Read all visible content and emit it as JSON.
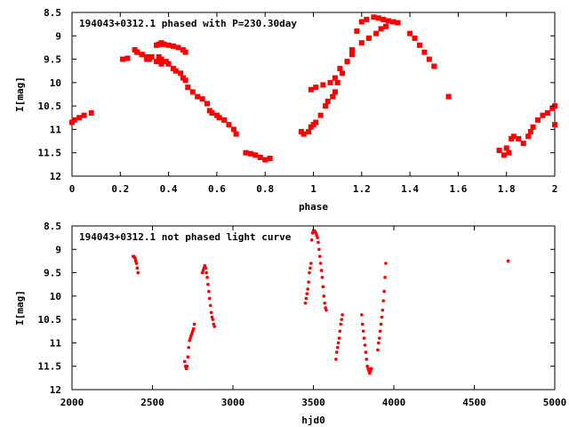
{
  "colors": {
    "marker": "#ff0000",
    "axis": "#000000",
    "background": "#ffffff"
  },
  "chart_data": [
    {
      "type": "scatter",
      "title": "194043+0312.1 phased with P=230.30day",
      "xlabel": "phase",
      "ylabel": "I[mag]",
      "xlim": [
        0,
        2
      ],
      "ylim": [
        8.5,
        12
      ],
      "y_inverted": true,
      "x_ticks": [
        "0",
        "0.2",
        "0.4",
        "0.6",
        "0.8",
        "1",
        "1.2",
        "1.4",
        "1.6",
        "1.8",
        "2"
      ],
      "y_ticks": [
        "8.5",
        "9",
        "9.5",
        "10",
        "10.5",
        "11",
        "11.5",
        "12"
      ],
      "grid": false,
      "legend": "none",
      "marker": "filled-square",
      "series": [
        {
          "x": [
            0.0,
            0.01,
            0.03,
            0.05,
            0.08,
            0.21,
            0.23,
            0.27,
            0.29,
            0.31,
            0.33,
            0.35,
            0.36,
            0.37,
            0.38,
            0.4,
            0.42,
            0.44,
            0.46,
            0.47,
            0.36,
            0.37,
            0.39,
            0.4,
            0.42,
            0.43,
            0.45,
            0.46,
            0.47,
            0.48,
            0.5,
            0.52,
            0.54,
            0.56,
            0.57,
            0.58,
            0.6,
            0.61,
            0.63,
            0.65,
            0.67,
            0.68,
            0.72,
            0.74,
            0.76,
            0.78,
            0.8,
            0.82,
            0.95,
            0.96,
            0.98,
            0.99,
            1.0,
            1.01,
            1.03,
            1.05,
            1.06,
            1.08,
            1.09,
            1.1,
            1.12,
            1.14,
            1.16,
            1.18,
            1.2,
            1.22,
            1.25,
            1.27,
            1.29,
            1.31,
            1.33,
            1.35,
            1.4,
            1.42,
            1.44,
            1.46,
            1.48,
            1.5,
            1.56,
            1.77,
            1.79,
            1.8,
            1.81,
            1.82,
            1.83,
            1.85,
            1.87,
            1.89,
            1.9,
            1.91,
            1.93,
            1.95,
            1.97,
            1.99,
            2.0,
            2.0,
            0.99,
            1.01,
            1.04,
            1.07,
            1.09,
            1.11,
            1.14,
            1.16,
            1.2,
            1.23,
            1.26,
            1.28,
            1.3,
            0.26,
            0.27,
            0.29,
            0.31,
            0.32,
            0.35,
            0.37
          ],
          "y": [
            10.85,
            10.8,
            10.75,
            10.7,
            10.65,
            9.5,
            9.48,
            9.35,
            9.4,
            9.5,
            9.45,
            9.2,
            9.18,
            9.15,
            9.18,
            9.2,
            9.22,
            9.25,
            9.3,
            9.35,
            9.45,
            9.5,
            9.55,
            9.6,
            9.7,
            9.75,
            9.8,
            9.9,
            9.95,
            10.1,
            10.2,
            10.3,
            10.35,
            10.45,
            10.6,
            10.65,
            10.7,
            10.75,
            10.8,
            10.9,
            11.0,
            11.1,
            11.5,
            11.52,
            11.55,
            11.6,
            11.65,
            11.62,
            11.05,
            11.1,
            11.05,
            10.95,
            10.9,
            10.85,
            10.7,
            10.5,
            10.4,
            10.3,
            10.2,
            10.0,
            9.8,
            9.55,
            9.3,
            8.9,
            8.7,
            8.65,
            8.6,
            8.62,
            8.65,
            8.68,
            8.7,
            8.72,
            8.95,
            9.05,
            9.2,
            9.35,
            9.5,
            9.65,
            10.3,
            11.45,
            11.55,
            11.4,
            11.5,
            11.2,
            11.15,
            11.2,
            11.3,
            11.15,
            11.05,
            10.95,
            10.8,
            10.7,
            10.65,
            10.55,
            10.5,
            10.9,
            10.15,
            10.1,
            10.05,
            10.0,
            9.9,
            9.7,
            9.55,
            9.4,
            9.15,
            9.05,
            8.95,
            8.85,
            8.8,
            9.3,
            9.35,
            9.4,
            9.45,
            9.5,
            9.55,
            9.6
          ]
        }
      ]
    },
    {
      "type": "scatter",
      "title": "194043+0312.1 not phased light curve",
      "xlabel": "hjd0",
      "ylabel": "I[mag]",
      "xlim": [
        2000,
        5000
      ],
      "ylim": [
        8.5,
        12
      ],
      "y_inverted": true,
      "x_ticks": [
        "2000",
        "2500",
        "3000",
        "3500",
        "4000",
        "4500",
        "5000"
      ],
      "y_ticks": [
        "8.5",
        "9",
        "9.5",
        "10",
        "10.5",
        "11",
        "11.5",
        "12"
      ],
      "grid": false,
      "legend": "none",
      "marker": "small-dot",
      "series": [
        {
          "x": [
            2380,
            2385,
            2390,
            2393,
            2396,
            2400,
            2405,
            2410,
            2700,
            2705,
            2710,
            2715,
            2720,
            2725,
            2730,
            2735,
            2740,
            2745,
            2750,
            2755,
            2760,
            2810,
            2815,
            2820,
            2825,
            2830,
            2835,
            2840,
            2845,
            2850,
            2855,
            2860,
            2865,
            2870,
            2875,
            2880,
            2885,
            3450,
            3455,
            3460,
            3465,
            3470,
            3475,
            3480,
            3485,
            3490,
            3495,
            3500,
            3505,
            3510,
            3515,
            3520,
            3525,
            3530,
            3535,
            3540,
            3545,
            3550,
            3555,
            3560,
            3565,
            3570,
            3575,
            3580,
            3640,
            3645,
            3650,
            3655,
            3660,
            3665,
            3670,
            3675,
            3680,
            3800,
            3805,
            3810,
            3815,
            3820,
            3825,
            3830,
            3835,
            3840,
            3845,
            3850,
            3855,
            3860,
            3900,
            3905,
            3910,
            3915,
            3920,
            3925,
            3930,
            3935,
            3940,
            3945,
            3950,
            4710
          ],
          "y": [
            9.15,
            9.15,
            9.18,
            9.2,
            9.25,
            9.3,
            9.4,
            9.5,
            11.4,
            11.5,
            11.55,
            11.5,
            11.3,
            11.1,
            10.95,
            10.9,
            10.85,
            10.8,
            10.75,
            10.7,
            10.6,
            9.5,
            9.45,
            9.4,
            9.35,
            9.4,
            9.5,
            9.6,
            9.75,
            9.9,
            10.05,
            10.2,
            10.35,
            10.45,
            10.5,
            10.6,
            10.65,
            10.15,
            10.05,
            9.95,
            9.85,
            9.7,
            9.5,
            9.4,
            9.3,
            8.8,
            8.65,
            8.6,
            8.6,
            8.62,
            8.65,
            8.7,
            8.75,
            8.85,
            9.0,
            9.15,
            9.3,
            9.45,
            9.6,
            9.8,
            10.0,
            10.15,
            10.25,
            10.3,
            11.35,
            11.2,
            11.1,
            11.0,
            10.9,
            10.75,
            10.6,
            10.5,
            10.4,
            10.4,
            10.6,
            10.75,
            10.9,
            11.05,
            11.2,
            11.35,
            11.5,
            11.55,
            11.6,
            11.65,
            11.6,
            11.55,
            11.15,
            11.0,
            10.9,
            10.75,
            10.6,
            10.45,
            10.3,
            10.1,
            9.9,
            9.6,
            9.3,
            9.25
          ],
          "mark_size": [
            3,
            3,
            3,
            3,
            3,
            3,
            3,
            3,
            3,
            3,
            3,
            3,
            3,
            3,
            3,
            3,
            3,
            3,
            3,
            3,
            3,
            3,
            3,
            3,
            3,
            3,
            3,
            3,
            3,
            3,
            3,
            3,
            3,
            3,
            3,
            3,
            3,
            3,
            3,
            3,
            3,
            3,
            3,
            3,
            3,
            3,
            3,
            3,
            3,
            3,
            3,
            3,
            3,
            3,
            3,
            3,
            3,
            3,
            3,
            3,
            3,
            3,
            3,
            3,
            3,
            3,
            3,
            3,
            3,
            3,
            3,
            3,
            3,
            3,
            3,
            3,
            3,
            3,
            3,
            3,
            3,
            3,
            3,
            3,
            3,
            3,
            3,
            3,
            3,
            3,
            3,
            3,
            3,
            3,
            3,
            3,
            3,
            3
          ]
        }
      ]
    }
  ]
}
